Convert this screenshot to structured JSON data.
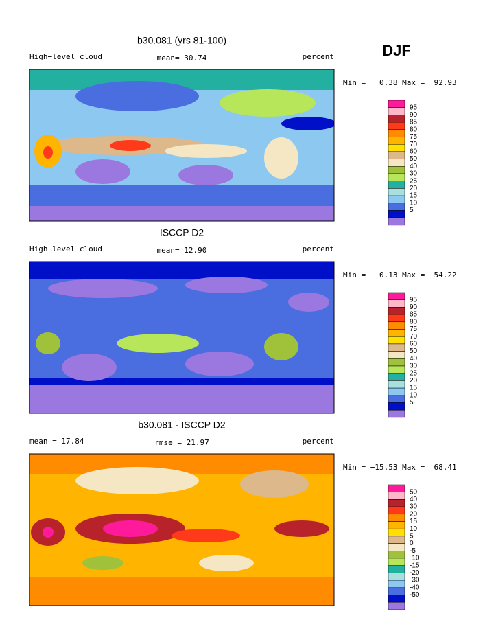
{
  "season": "DJF",
  "panels": [
    {
      "title": "b30.081 (yrs 81-100)",
      "left_label": "High−level cloud",
      "center_label": "mean=  30.74",
      "right_label": "percent",
      "stats": "Min =   0.38 Max =  92.93",
      "colorbar": {
        "labels": [
          95,
          90,
          85,
          80,
          75,
          70,
          60,
          50,
          40,
          30,
          25,
          20,
          15,
          10,
          5
        ],
        "colors": [
          "#ff1a9c",
          "#ffb6c8",
          "#b8232b",
          "#ff3a1a",
          "#ff8c00",
          "#ffb400",
          "#ffe000",
          "#dcb88a",
          "#f5e6c4",
          "#9fc23a",
          "#b8e65a",
          "#24b0a0",
          "#a8e0e0",
          "#8cc8f0",
          "#4a6ee0",
          "#0010c8",
          "#9a78e0"
        ]
      }
    },
    {
      "title": "ISCCP D2",
      "left_label": "High−level cloud",
      "center_label": "mean=  12.90",
      "right_label": "percent",
      "stats": "Min =   0.13 Max =  54.22",
      "colorbar": {
        "labels": [
          95,
          90,
          85,
          80,
          75,
          70,
          60,
          50,
          40,
          30,
          25,
          20,
          15,
          10,
          5
        ],
        "colors": [
          "#ff1a9c",
          "#ffb6c8",
          "#b8232b",
          "#ff3a1a",
          "#ff8c00",
          "#ffb400",
          "#ffe000",
          "#dcb88a",
          "#f5e6c4",
          "#9fc23a",
          "#b8e65a",
          "#24b0a0",
          "#a8e0e0",
          "#8cc8f0",
          "#4a6ee0",
          "#0010c8",
          "#9a78e0"
        ]
      }
    },
    {
      "title": "b30.081 - ISCCP D2",
      "left_label": "mean =  17.84",
      "center_label": "rmse =  21.97",
      "right_label": "percent",
      "stats": "Min = −15.53 Max =  68.41",
      "colorbar": {
        "labels": [
          50,
          40,
          30,
          20,
          15,
          10,
          5,
          0,
          -5,
          -10,
          -15,
          -20,
          -30,
          -40,
          -50
        ],
        "colors": [
          "#ff1a9c",
          "#ffb6c8",
          "#b8232b",
          "#ff3a1a",
          "#ff8c00",
          "#ffb400",
          "#ffe000",
          "#dcb88a",
          "#f5e6c4",
          "#9fc23a",
          "#b8e65a",
          "#24b0a0",
          "#a8e0e0",
          "#8cc8f0",
          "#4a6ee0",
          "#0010c8",
          "#9a78e0"
        ]
      }
    }
  ]
}
